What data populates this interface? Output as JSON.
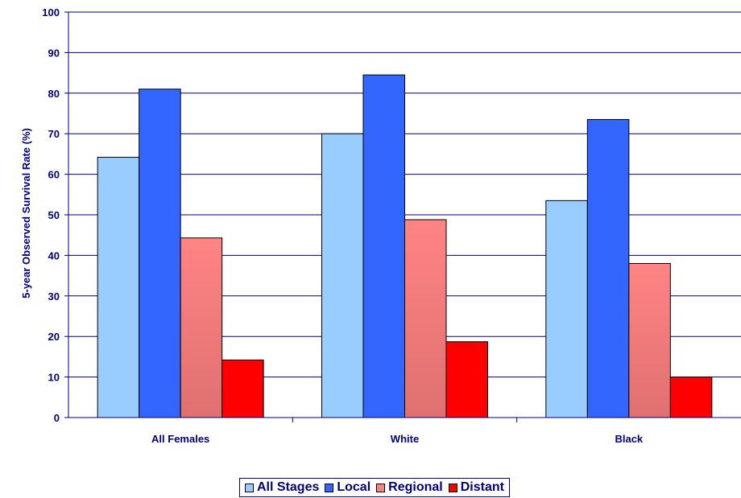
{
  "chart_data": {
    "type": "bar",
    "title": "",
    "xlabel": "",
    "ylabel": "5-year Observed Survival Rate (%)",
    "categories": [
      "All Females",
      "White",
      "Black"
    ],
    "ylim": [
      0,
      100
    ],
    "yticks": [
      0,
      10,
      20,
      30,
      40,
      50,
      60,
      70,
      80,
      90,
      100
    ],
    "grid": true,
    "legend_position": "bottom",
    "series": [
      {
        "name": "All Stages",
        "values": [
          64.2,
          70,
          53.5
        ],
        "color": "#99ccff"
      },
      {
        "name": "Local",
        "values": [
          81,
          84.5,
          73.5
        ],
        "color": "#3366ff"
      },
      {
        "name": "Regional",
        "values": [
          44.3,
          48.8,
          38
        ],
        "color": "#ff8080"
      },
      {
        "name": "Distant",
        "values": [
          14.2,
          18.7,
          10
        ],
        "color": "#ff0000"
      }
    ]
  }
}
